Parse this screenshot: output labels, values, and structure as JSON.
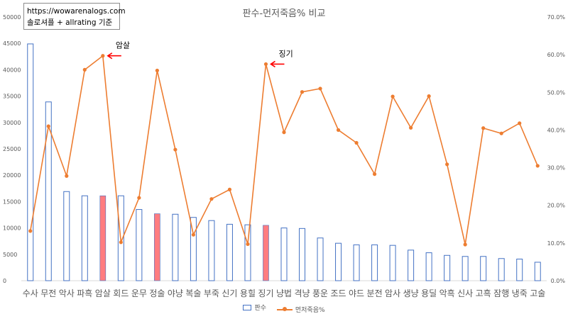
{
  "info": {
    "line1": "https://wowarenalogs.com",
    "line2": "솔로셔플 + allrating 기준"
  },
  "chart_data": {
    "type": "bar",
    "title": "판수-먼저죽음% 비교",
    "categories": [
      "수사",
      "무전",
      "악사",
      "파흑",
      "암살",
      "회드",
      "운무",
      "정술",
      "야냥",
      "복술",
      "부죽",
      "신기",
      "용힐",
      "징기",
      "냥법",
      "격냥",
      "풍운",
      "조드",
      "야드",
      "분전",
      "암사",
      "생냥",
      "용딜",
      "악흑",
      "신사",
      "고흑",
      "잠행",
      "냉죽",
      "고술"
    ],
    "series": [
      {
        "name": "판수",
        "axis": "left",
        "values": [
          44900,
          33900,
          16900,
          16100,
          16100,
          16100,
          13500,
          12700,
          12600,
          12000,
          11400,
          10700,
          10600,
          10500,
          10000,
          9900,
          8100,
          7100,
          6800,
          6800,
          6700,
          5800,
          5300,
          4800,
          4600,
          4600,
          4200,
          4100,
          3500
        ],
        "highlight_indices": [
          4,
          7,
          13
        ],
        "color": "#4472c4",
        "highlight_color": "#ff7c80"
      },
      {
        "name": "먼저죽음%",
        "axis": "right",
        "values": [
          13.2,
          41.0,
          27.8,
          56.0,
          59.7,
          10.2,
          22.0,
          55.8,
          34.8,
          12.2,
          21.7,
          24.2,
          9.7,
          57.5,
          39.4,
          50.1,
          51.0,
          40.0,
          36.6,
          28.3,
          48.9,
          40.6,
          49.0,
          30.9,
          9.6,
          40.5,
          39.1,
          41.8,
          30.5
        ],
        "color": "#ed7d31"
      }
    ],
    "y_left": {
      "min": 0,
      "max": 50000,
      "step": 5000,
      "ticks": [
        "0",
        "5000",
        "10000",
        "15000",
        "20000",
        "25000",
        "30000",
        "35000",
        "40000",
        "45000",
        "50000"
      ]
    },
    "y_right": {
      "min": 0,
      "max": 70,
      "step": 10,
      "ticks": [
        "0.0%",
        "10.0%",
        "20.0%",
        "30.0%",
        "40.0%",
        "50.0%",
        "60.0%",
        "70.0%"
      ]
    },
    "legend": {
      "position": "bottom",
      "labels": [
        "판수",
        "먼저죽음%"
      ]
    },
    "annotations": [
      {
        "text": "암살",
        "index": 4
      },
      {
        "text": "징기",
        "index": 13
      }
    ],
    "arrow_color": "#ff0000"
  }
}
